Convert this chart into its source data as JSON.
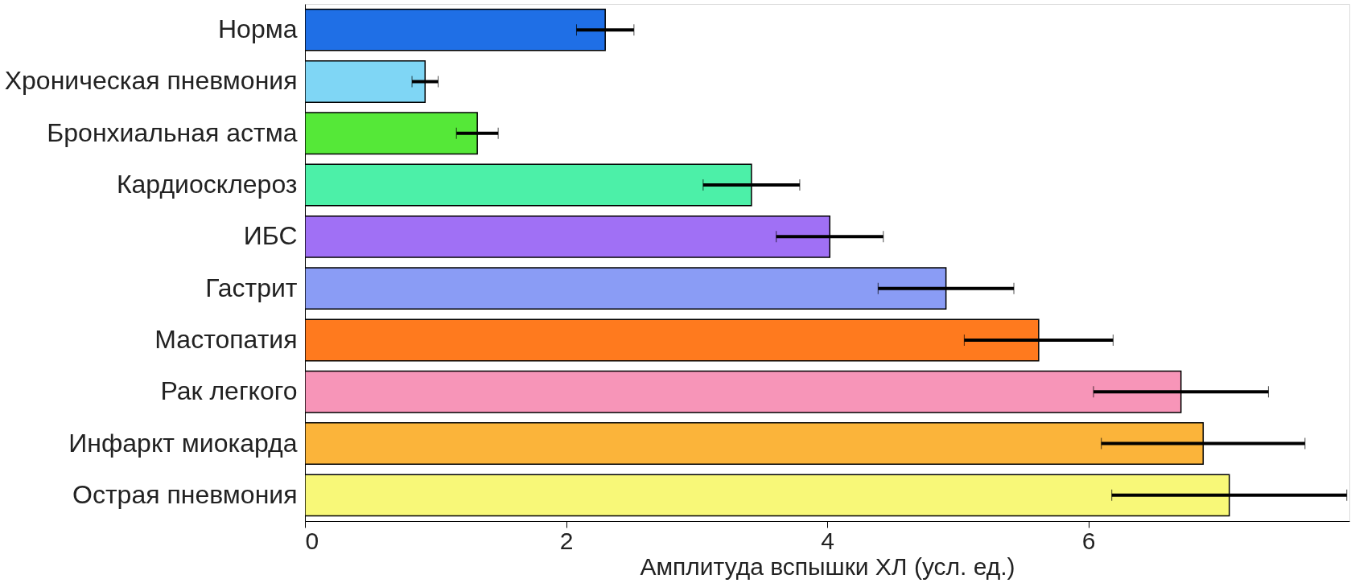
{
  "chart_data": {
    "type": "bar",
    "orientation": "horizontal",
    "xlabel": "Амплитуда вспышки ХЛ (усл. ед.)",
    "categories": [
      "Норма",
      "Хроническая пневмония",
      "Бронхиальная астма",
      "Кардиосклероз",
      "ИБС",
      "Гастрит",
      "Мастопатия",
      "Рак легкого",
      "Инфаркт миокарда",
      "Острая пневмония"
    ],
    "values": [
      2.3,
      0.92,
      1.32,
      3.42,
      4.02,
      4.91,
      5.62,
      6.71,
      6.88,
      7.08
    ],
    "errors": [
      0.22,
      0.1,
      0.16,
      0.37,
      0.41,
      0.52,
      0.57,
      0.67,
      0.78,
      0.9
    ],
    "colors": [
      "#1f6fe6",
      "#7fd6f5",
      "#55e838",
      "#4cf0a8",
      "#a070f5",
      "#8a9cf5",
      "#ff7a1e",
      "#f795b8",
      "#fbb43a",
      "#f8f878"
    ],
    "xlim": [
      0,
      8
    ],
    "xticks": [
      0,
      2,
      4,
      6
    ],
    "grid": false
  }
}
